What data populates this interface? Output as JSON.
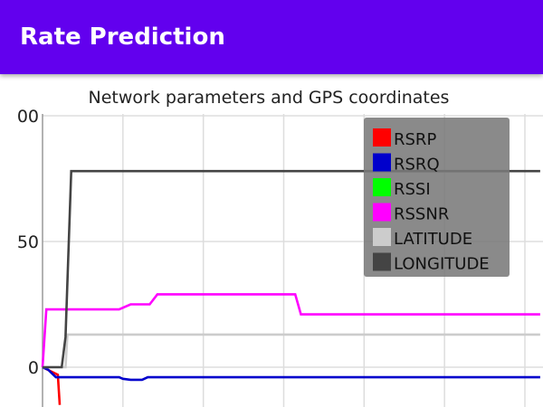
{
  "app_bar": {
    "title": "Rate Prediction"
  },
  "colors": {
    "app_bar": "#6200ee",
    "legend_background": "#7a7a7a"
  },
  "chart_data": {
    "type": "line",
    "title": "Network parameters and GPS coordinates",
    "xlabel": "",
    "ylabel": "",
    "y_tick_labels": [
      "0",
      "50",
      "00"
    ],
    "ylim": [
      -15,
      100
    ],
    "xlim": [
      0,
      13
    ],
    "x_grid": [
      0,
      2.1,
      4.2,
      6.3,
      8.4,
      10.5,
      12.6
    ],
    "grid": true,
    "legend_position": "top-right",
    "series": [
      {
        "name": "RSRP",
        "color": "#ff0000",
        "points": [
          [
            0,
            0
          ],
          [
            0.4,
            -3
          ],
          [
            0.45,
            -15
          ]
        ]
      },
      {
        "name": "RSRQ",
        "color": "#0000cc",
        "points": [
          [
            0,
            0
          ],
          [
            0.15,
            -1
          ],
          [
            0.35,
            -4
          ],
          [
            2.0,
            -4
          ],
          [
            2.1,
            -4.6
          ],
          [
            2.3,
            -5
          ],
          [
            2.6,
            -5
          ],
          [
            2.75,
            -4
          ],
          [
            13,
            -4
          ]
        ]
      },
      {
        "name": "RSSI",
        "color": "#00ff00",
        "points": []
      },
      {
        "name": "RSSNR",
        "color": "#ff00ff",
        "points": [
          [
            0,
            0
          ],
          [
            0.1,
            23
          ],
          [
            2.0,
            23
          ],
          [
            2.3,
            25
          ],
          [
            2.8,
            25
          ],
          [
            3.0,
            29
          ],
          [
            6.6,
            29
          ],
          [
            6.75,
            21
          ],
          [
            13,
            21
          ]
        ]
      },
      {
        "name": "LATITUDE",
        "color": "#cccccc",
        "points": [
          [
            0,
            0
          ],
          [
            0.6,
            0
          ],
          [
            0.65,
            13
          ],
          [
            13,
            13
          ]
        ]
      },
      {
        "name": "LONGITUDE",
        "color": "#444444",
        "points": [
          [
            0,
            0
          ],
          [
            0.5,
            0
          ],
          [
            0.6,
            12
          ],
          [
            0.75,
            78
          ],
          [
            13,
            78
          ]
        ]
      }
    ]
  }
}
